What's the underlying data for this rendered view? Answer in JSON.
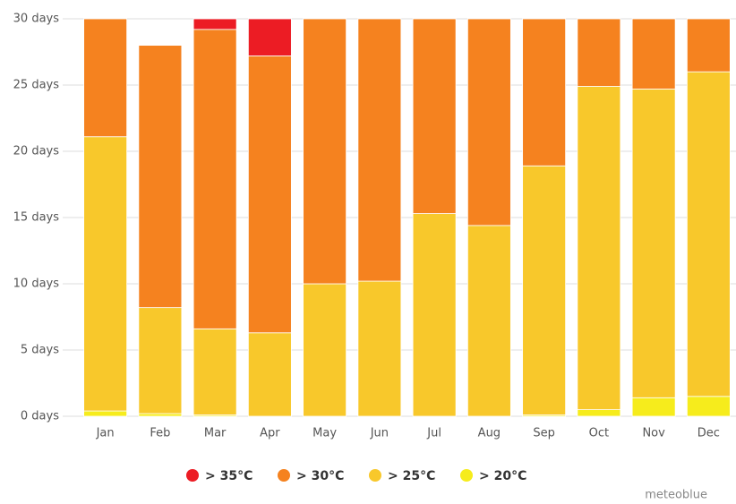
{
  "chart_data": {
    "type": "stacked-bar",
    "categories": [
      "Jan",
      "Feb",
      "Mar",
      "Apr",
      "May",
      "Jun",
      "Jul",
      "Aug",
      "Sep",
      "Oct",
      "Nov",
      "Dec"
    ],
    "series": [
      {
        "name": "> 35°C",
        "color": "#ec1c24",
        "values": [
          0,
          0,
          0.8,
          2.8,
          0,
          0,
          0,
          0,
          0,
          0,
          0,
          0
        ]
      },
      {
        "name": "> 30°C",
        "color": "#f5821f",
        "values": [
          8.9,
          19.8,
          22.6,
          20.9,
          20.0,
          19.8,
          14.7,
          15.6,
          11.1,
          5.1,
          5.3,
          4.0
        ]
      },
      {
        "name": "> 25°C",
        "color": "#f8c82b",
        "values": [
          20.7,
          8.0,
          6.5,
          6.3,
          10.0,
          10.2,
          15.3,
          14.4,
          18.8,
          24.4,
          23.3,
          24.5
        ]
      },
      {
        "name": "> 20°C",
        "color": "#f6ec1c",
        "values": [
          0.4,
          0.2,
          0.1,
          0,
          0,
          0,
          0,
          0,
          0.1,
          0.5,
          1.4,
          1.5
        ]
      }
    ],
    "ylim": [
      0,
      30
    ],
    "yticks": [
      {
        "value": 0,
        "label": "0 days"
      },
      {
        "value": 5,
        "label": "5 days"
      },
      {
        "value": 10,
        "label": "10 days"
      },
      {
        "value": 15,
        "label": "15 days"
      },
      {
        "value": 20,
        "label": "20 days"
      },
      {
        "value": 25,
        "label": "25 days"
      },
      {
        "value": 30,
        "label": "30 days"
      }
    ],
    "grid": true,
    "credit": "meteoblue"
  }
}
